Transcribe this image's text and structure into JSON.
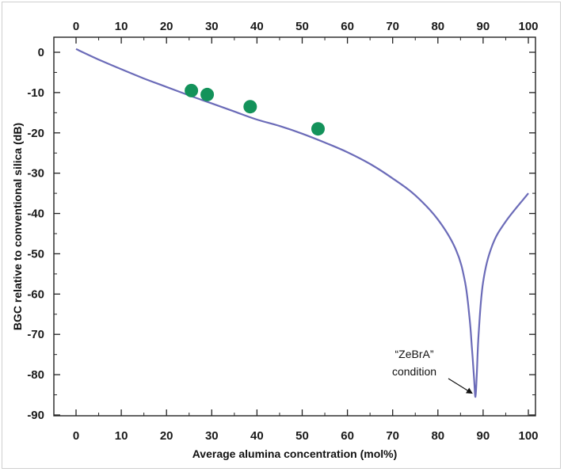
{
  "chart_data": {
    "type": "line",
    "title": "",
    "xlabel": "Average alumina concentration (mol%)",
    "ylabel": "BGC relative to conventional silica (dB)",
    "xlim": [
      0,
      100
    ],
    "ylim": [
      -90,
      0
    ],
    "x_ticks": [
      0,
      10,
      20,
      30,
      40,
      50,
      60,
      70,
      80,
      90,
      100
    ],
    "y_ticks": [
      0,
      -10,
      -20,
      -30,
      -40,
      -50,
      -60,
      -70,
      -80,
      -90
    ],
    "grid": false,
    "series": [
      {
        "color": "#6b6bb8",
        "x": [
          0,
          5,
          10,
          15,
          20,
          25,
          30,
          35,
          40,
          45,
          50,
          55,
          60,
          65,
          70,
          75,
          80,
          84,
          86,
          87,
          87.5,
          88,
          88.3,
          88.6,
          89,
          90,
          92,
          95,
          100
        ],
        "y": [
          0.8,
          -1.8,
          -4.2,
          -6.5,
          -8.6,
          -10.7,
          -12.7,
          -14.7,
          -16.7,
          -18.3,
          -20.2,
          -22.4,
          -24.8,
          -27.7,
          -31.3,
          -35.5,
          -41.5,
          -49,
          -57,
          -66,
          -73,
          -81,
          -85.5,
          -80,
          -70,
          -57,
          -48,
          -42,
          -35
        ]
      }
    ],
    "markers": {
      "color": "#13925a",
      "x": [
        25.5,
        29,
        38.5,
        53.5
      ],
      "y": [
        -9.5,
        -10.5,
        -13.5,
        -19
      ]
    },
    "annotation": {
      "line1": "“ZeBrA”",
      "line2": "condition",
      "target_x": 88.3,
      "target_y": -85.5
    }
  }
}
